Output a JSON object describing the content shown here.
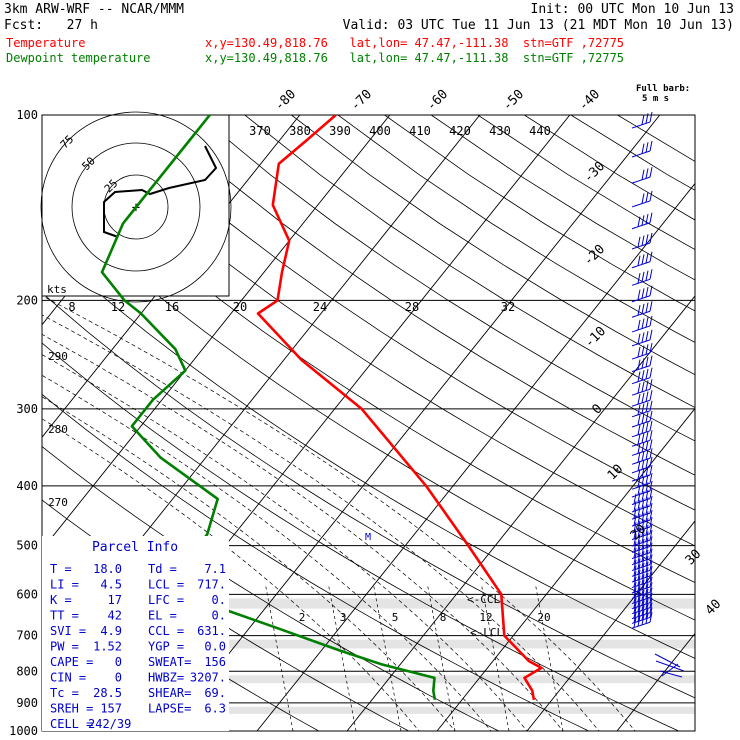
{
  "header": {
    "model": "3km ARW-WRF -- NCAR/MMM",
    "init": "Init: 00 UTC Mon 10 Jun 13",
    "fcst": "Fcst:   27 h",
    "valid": "Valid: 03 UTC Tue 11 Jun 13 (21 MDT Mon 10 Jun 13)",
    "temp_label": "Temperature",
    "temp_loc": "x,y=130.49,818.76   lat,lon= 47.47,-111.38  stn=GTF ,72775",
    "dew_label": "Dewpoint temperature",
    "dew_loc": "x,y=130.49,818.76   lat,lon= 47.47,-111.38  stn=GTF ,72775",
    "barb_key_line1": "Full barb:",
    "barb_key_line2": "5 m s"
  },
  "colors": {
    "temperature": "#ff0000",
    "dewpoint": "#008000",
    "wind": "#0000cc",
    "grid": "#000000"
  },
  "chart_data": [
    {
      "type": "line",
      "y_axis": "pressure (hPa), log scale",
      "ylim": [
        1000,
        100
      ],
      "pressure_ticks": [
        100,
        200,
        300,
        400,
        500,
        600,
        700,
        800,
        900,
        1000
      ],
      "isotherm_labels_top": [
        -80,
        -70,
        -60,
        -50,
        -40
      ],
      "isotherm_labels_right": [
        -30,
        -20,
        -10,
        0,
        10,
        20,
        30,
        40
      ],
      "theta_labels": [
        370,
        380,
        390,
        400,
        410,
        420,
        430,
        440
      ],
      "dry_adiabat_labels": [
        290,
        280,
        270
      ],
      "moist_labels_200": [
        8,
        12,
        16,
        20,
        24,
        28,
        32
      ],
      "mixing_ratio_labels": [
        2,
        3,
        5,
        8,
        12,
        20
      ],
      "series": [
        {
          "name": "Temperature",
          "points": [
            [
              890,
              18
            ],
            [
              860,
              17
            ],
            [
              820,
              15
            ],
            [
              790,
              16
            ],
            [
              770,
              14
            ],
            [
              700,
              9
            ],
            [
              600,
              5
            ],
            [
              500,
              -3
            ],
            [
              400,
              -13
            ],
            [
              300,
              -27
            ],
            [
              250,
              -38
            ],
            [
              210,
              -47
            ],
            [
              200,
              -46
            ],
            [
              180,
              -48
            ],
            [
              160,
              -50
            ],
            [
              140,
              -55
            ],
            [
              120,
              -58
            ],
            [
              110,
              -57
            ],
            [
              100,
              -56
            ]
          ]
        },
        {
          "name": "Dewpoint temperature",
          "points": [
            [
              890,
              7
            ],
            [
              860,
              6
            ],
            [
              820,
              5
            ],
            [
              780,
              -2
            ],
            [
              740,
              -8
            ],
            [
              680,
              -17
            ],
            [
              620,
              -27
            ],
            [
              600,
              -30
            ],
            [
              520,
              -33
            ],
            [
              480,
              -33
            ],
            [
              420,
              -35
            ],
            [
              360,
              -45
            ],
            [
              320,
              -51
            ],
            [
              290,
              -51
            ],
            [
              260,
              -50
            ],
            [
              240,
              -53
            ],
            [
              210,
              -60
            ],
            [
              200,
              -63
            ],
            [
              180,
              -68
            ],
            [
              150,
              -70
            ],
            [
              130,
              -70
            ],
            [
              110,
              -70
            ],
            [
              100,
              -70
            ]
          ]
        }
      ],
      "annotations": [
        "<-CCL",
        "<-LCL",
        "M"
      ]
    },
    {
      "type": "line",
      "hodograph": true,
      "xlabel": "kts",
      "ring_labels": [
        "25",
        "50",
        "75"
      ]
    }
  ],
  "parcel_info": {
    "title": "Parcel Info",
    "rows": [
      [
        "T  =",
        "18.0",
        "Td =",
        "7.1"
      ],
      [
        "LI =",
        "4.5",
        "LCL =",
        "717."
      ],
      [
        "K  =",
        "17",
        "LFC =",
        "0."
      ],
      [
        "TT =",
        "42",
        "EL =",
        "0."
      ],
      [
        "SVI =",
        "4.9",
        "CCL =",
        "631."
      ],
      [
        "PW =",
        "1.52",
        "YGP =",
        "0.0"
      ],
      [
        "CAPE =",
        "0",
        "SWEAT=",
        "156"
      ],
      [
        "CIN =",
        "0",
        "HWBZ=",
        "3207."
      ],
      [
        "Tc =",
        "28.5",
        "SHEAR=",
        "69."
      ],
      [
        "SREH =",
        "157",
        "LAPSE=",
        "6.3"
      ],
      [
        "CELL =",
        "242/39",
        "",
        ""
      ]
    ]
  }
}
